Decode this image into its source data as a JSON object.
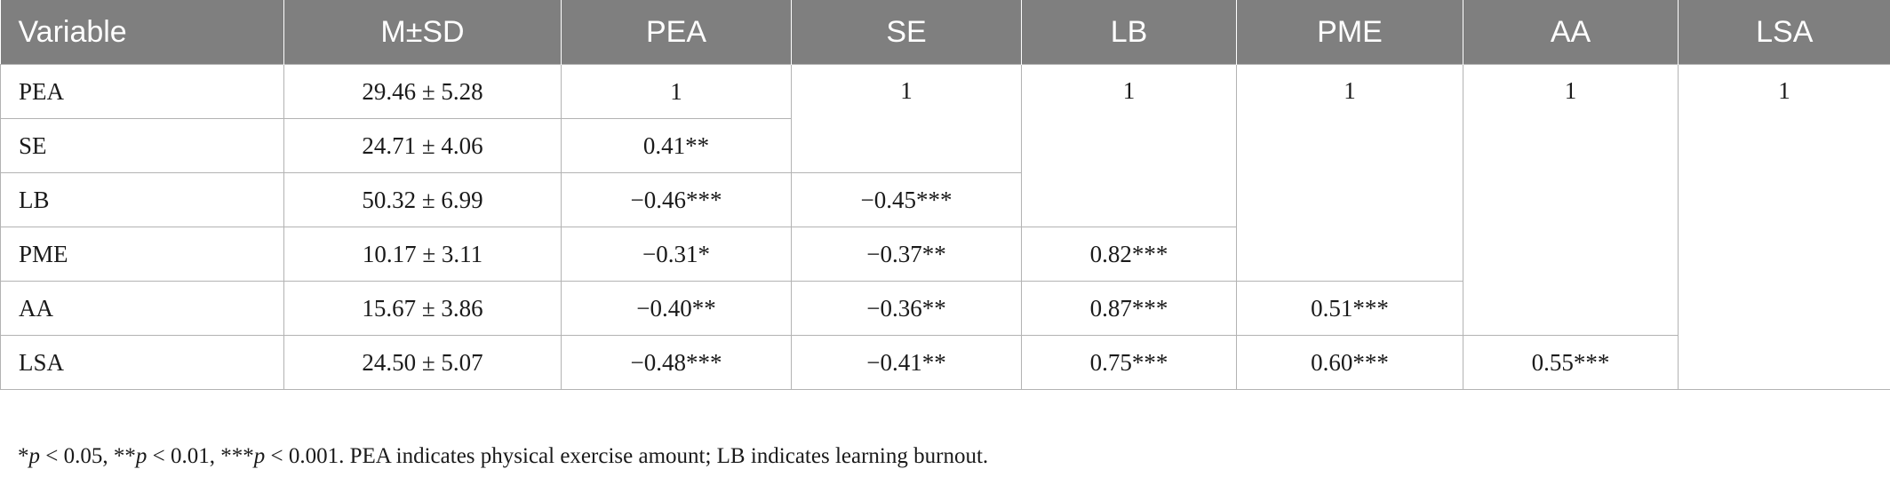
{
  "table": {
    "headers": [
      "Variable",
      "M±SD",
      "PEA",
      "SE",
      "LB",
      "PME",
      "AA",
      "LSA"
    ],
    "rows": [
      {
        "variable": "PEA",
        "msd": "29.46 ± 5.28",
        "cells": [
          "1"
        ]
      },
      {
        "variable": "SE",
        "msd": "24.71 ± 4.06",
        "cells": [
          "0.41**"
        ]
      },
      {
        "variable": "LB",
        "msd": "50.32 ± 6.99",
        "cells": [
          "−0.46***",
          "−0.45***"
        ]
      },
      {
        "variable": "PME",
        "msd": "10.17 ± 3.11",
        "cells": [
          "−0.31*",
          "−0.37**",
          "0.82***"
        ]
      },
      {
        "variable": "AA",
        "msd": "15.67 ± 3.86",
        "cells": [
          "−0.40**",
          "−0.36**",
          "0.87***",
          "0.51***"
        ]
      },
      {
        "variable": "LSA",
        "msd": "24.50 ± 5.07",
        "cells": [
          "−0.48***",
          "−0.41**",
          "0.75***",
          "0.60***",
          "0.55***"
        ]
      }
    ],
    "diagonal": [
      "1",
      "1",
      "1",
      "1",
      "1"
    ]
  },
  "note": {
    "s1": "*",
    "p1": "p",
    "t1": " < 0.05, **",
    "p2": "p",
    "t2": " < 0.01, ***",
    "p3": "p",
    "t3": " < 0.001. PEA indicates physical exercise amount; LB indicates learning burnout."
  }
}
